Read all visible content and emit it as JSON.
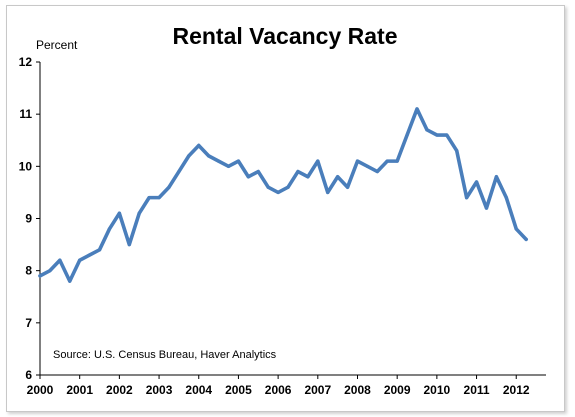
{
  "chart_data": {
    "type": "line",
    "title": "Rental Vacancy Rate",
    "ylabel": "Percent",
    "xlabel": "",
    "source": "Source: U.S. Census Bureau, Haver Analytics",
    "ylim": [
      6,
      12
    ],
    "yticks": [
      "6",
      "7",
      "8",
      "9",
      "10",
      "11",
      "12"
    ],
    "xlim": [
      2000,
      2012.75
    ],
    "xticks": [
      "2000",
      "2001",
      "2002",
      "2003",
      "2004",
      "2005",
      "2006",
      "2007",
      "2008",
      "2009",
      "2010",
      "2011",
      "2012"
    ],
    "grid": false,
    "legend": "none",
    "line_color": "#4a7ebb",
    "series": [
      {
        "x": [
          2000.0,
          2000.25,
          2000.5,
          2000.75,
          2001.0,
          2001.25,
          2001.5,
          2001.75,
          2002.0,
          2002.25,
          2002.5,
          2002.75,
          2003.0,
          2003.25,
          2003.5,
          2003.75,
          2004.0,
          2004.25,
          2004.5,
          2004.75,
          2005.0,
          2005.25,
          2005.5,
          2005.75,
          2006.0,
          2006.25,
          2006.5,
          2006.75,
          2007.0,
          2007.25,
          2007.5,
          2007.75,
          2008.0,
          2008.25,
          2008.5,
          2008.75,
          2009.0,
          2009.25,
          2009.5,
          2009.75,
          2010.0,
          2010.25,
          2010.5,
          2010.75,
          2011.0,
          2011.25,
          2011.5,
          2011.75,
          2012.0,
          2012.25
        ],
        "values": [
          7.9,
          8.0,
          8.2,
          7.8,
          8.2,
          8.3,
          8.4,
          8.8,
          9.1,
          8.5,
          9.1,
          9.4,
          9.4,
          9.6,
          9.9,
          10.2,
          10.4,
          10.2,
          10.1,
          10.0,
          10.1,
          9.8,
          9.9,
          9.6,
          9.5,
          9.6,
          9.9,
          9.8,
          10.1,
          9.5,
          9.8,
          9.6,
          10.1,
          10.0,
          9.9,
          10.1,
          10.1,
          10.6,
          11.1,
          10.7,
          10.6,
          10.6,
          10.3,
          9.4,
          9.7,
          9.2,
          9.8,
          9.4,
          8.8,
          8.6
        ]
      }
    ]
  }
}
